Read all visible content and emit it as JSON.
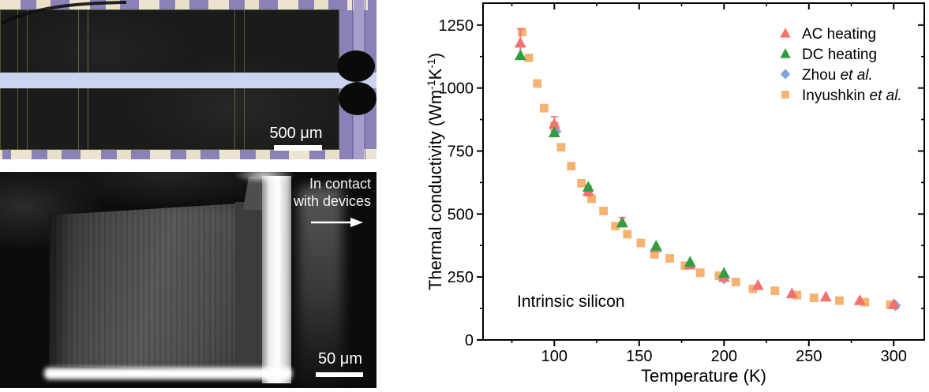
{
  "figure": {
    "panel_optical": {
      "scale_bar": "500 μm"
    },
    "panel_sem": {
      "annotation_line1": "In contact",
      "annotation_line2": "with devices",
      "scale_bar": "50 μm"
    }
  },
  "chart_data": {
    "type": "scatter",
    "title": "",
    "xlabel": "Temperature (K)",
    "ylabel": "Thermal conductivity (Wm⁻¹K⁻¹)",
    "ylabel_parts": [
      {
        "t": "Thermal conductivity (Wm"
      },
      {
        "t": "-1",
        "sup": true
      },
      {
        "t": "K"
      },
      {
        "t": "-1",
        "sup": true
      },
      {
        "t": ")"
      }
    ],
    "annotation": "Intrinsic silicon",
    "xlim": [
      58,
      318
    ],
    "ylim": [
      0,
      1337
    ],
    "x_major_ticks": [
      100,
      150,
      200,
      250,
      300
    ],
    "x_minor_ticks": [
      75,
      125,
      175,
      225,
      275
    ],
    "y_major_ticks": [
      0,
      250,
      500,
      750,
      1000,
      1250
    ],
    "y_minor_ticks": [
      125,
      375,
      625,
      875,
      1125
    ],
    "grid": false,
    "legend_position": "top-right",
    "legend_order": [
      "AC heating",
      "DC heating",
      "Zhou et al.",
      "Inyushkin et al."
    ],
    "series": [
      {
        "name": "Inyushkin et al.",
        "label": "Inyushkin ",
        "label_italic": "et al.",
        "marker": "square",
        "color": "#f5b271",
        "points": [
          [
            81,
            1222
          ],
          [
            85,
            1120
          ],
          [
            90,
            1018
          ],
          [
            94,
            920
          ],
          [
            100,
            850
          ],
          [
            104,
            765
          ],
          [
            110,
            690
          ],
          [
            116,
            622
          ],
          [
            122,
            560
          ],
          [
            129,
            512
          ],
          [
            136,
            452
          ],
          [
            143,
            420
          ],
          [
            151,
            385
          ],
          [
            159,
            340
          ],
          [
            168,
            324
          ],
          [
            177,
            295
          ],
          [
            186,
            267
          ],
          [
            197,
            255
          ],
          [
            207,
            230
          ],
          [
            217,
            203
          ],
          [
            230,
            195
          ],
          [
            243,
            178
          ],
          [
            253,
            167
          ],
          [
            268,
            156
          ],
          [
            283,
            150
          ],
          [
            298,
            140
          ]
        ]
      },
      {
        "name": "Zhou et al.",
        "label": "Zhou ",
        "label_italic": "et al.",
        "marker": "diamond",
        "color": "#84a4da",
        "points": [
          [
            101,
            828
          ],
          [
            200,
            244
          ],
          [
            301,
            137
          ]
        ]
      },
      {
        "name": "AC heating",
        "label": "AC heating",
        "label_italic": "",
        "marker": "triangle",
        "color": "#f3726d",
        "points": [
          [
            80,
            1180
          ],
          [
            100,
            858
          ],
          [
            120,
            592
          ],
          [
            140,
            468
          ],
          [
            160,
            368
          ],
          [
            180,
            300
          ],
          [
            200,
            250
          ],
          [
            220,
            218
          ],
          [
            240,
            185
          ],
          [
            260,
            172
          ],
          [
            280,
            158
          ],
          [
            300,
            142
          ]
        ],
        "yerr": [
          55,
          28,
          20,
          18,
          0,
          0,
          0,
          0,
          0,
          0,
          0,
          0
        ]
      },
      {
        "name": "DC heating",
        "label": "DC heating",
        "label_italic": "",
        "marker": "triangle",
        "color": "#2f9e41",
        "points": [
          [
            80,
            1130
          ],
          [
            100,
            824
          ],
          [
            120,
            608
          ],
          [
            140,
            466
          ],
          [
            160,
            374
          ],
          [
            180,
            310
          ],
          [
            200,
            266
          ]
        ]
      }
    ]
  }
}
